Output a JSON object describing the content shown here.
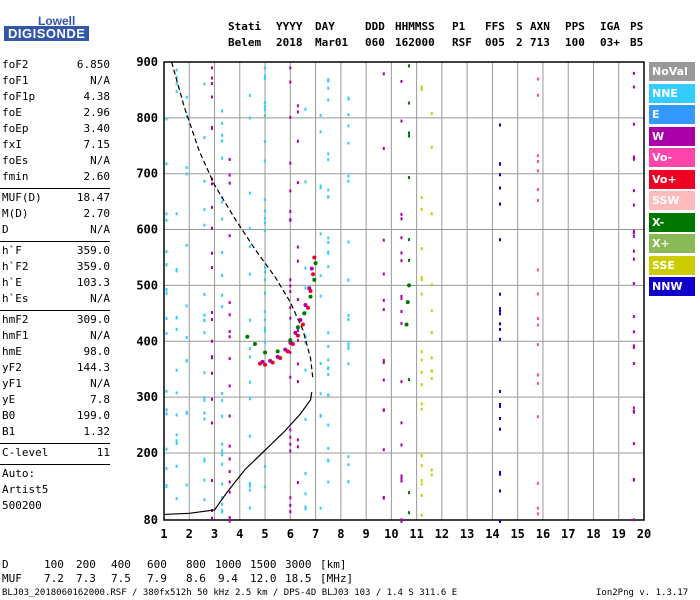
{
  "logo": {
    "top": "Lowell",
    "bottom": "DIGISONDE"
  },
  "header": {
    "line1": [
      "Stati",
      "YYYY",
      "DAY",
      "DDD",
      "HHMMSS",
      "P1",
      "FFS",
      "S",
      "AXN",
      "PPS",
      "IGA",
      "PS"
    ],
    "line2": [
      "Belem",
      "2018",
      "Mar01",
      "060",
      "162000",
      "RSF",
      "005",
      "2",
      "713",
      "100",
      "03+",
      "B5"
    ]
  },
  "params_group1": [
    {
      "label": "foF2",
      "value": "6.850"
    },
    {
      "label": "foF1",
      "value": "N/A"
    },
    {
      "label": "foF1p",
      "value": "4.38"
    },
    {
      "label": "foE",
      "value": "2.96"
    },
    {
      "label": "foEp",
      "value": "3.40"
    },
    {
      "label": "fxI",
      "value": "7.15"
    },
    {
      "label": "foEs",
      "value": "N/A"
    },
    {
      "label": "fmin",
      "value": "2.60"
    }
  ],
  "params_group2": [
    {
      "label": "MUF(D)",
      "value": "18.47"
    },
    {
      "label": "M(D)",
      "value": "2.70"
    },
    {
      "label": "D",
      "value": "N/A"
    }
  ],
  "params_group3": [
    {
      "label": "h`F",
      "value": "359.0"
    },
    {
      "label": "h`F2",
      "value": "359.0"
    },
    {
      "label": "h`E",
      "value": "103.3"
    },
    {
      "label": "h`Es",
      "value": "N/A"
    }
  ],
  "params_group4": [
    {
      "label": "hmF2",
      "value": "309.0"
    },
    {
      "label": "hmF1",
      "value": "N/A"
    },
    {
      "label": "hmE",
      "value": "98.0"
    },
    {
      "label": "yF2",
      "value": "144.3"
    },
    {
      "label": "yF1",
      "value": "N/A"
    },
    {
      "label": "yE",
      "value": "7.8"
    },
    {
      "label": "B0",
      "value": "199.0"
    },
    {
      "label": "B1",
      "value": "1.32"
    }
  ],
  "params_group5": [
    {
      "label": "C-level",
      "value": "11"
    }
  ],
  "auto_lines": [
    "Auto:",
    "Artist5",
    "500200"
  ],
  "legend": [
    {
      "label": "NoVal",
      "bg": "#999999",
      "fg": "#ffffff"
    },
    {
      "label": "NNE",
      "bg": "#33ccff",
      "fg": "#ffffff"
    },
    {
      "label": "E",
      "bg": "#3399ff",
      "fg": "#ffffff"
    },
    {
      "label": "W",
      "bg": "#aa00aa",
      "fg": "#ffffff"
    },
    {
      "label": "Vo-",
      "bg": "#ff44aa",
      "fg": "#ffffff"
    },
    {
      "label": "Vo+",
      "bg": "#ee0022",
      "fg": "#ffffff"
    },
    {
      "label": "SSW",
      "bg": "#ffbbbb",
      "fg": "#ffffff"
    },
    {
      "label": "X-",
      "bg": "#007700",
      "fg": "#ffffff"
    },
    {
      "label": "X+",
      "bg": "#88bb55",
      "fg": "#ffffff"
    },
    {
      "label": "SSE",
      "bg": "#cccc00",
      "fg": "#ffffff"
    },
    {
      "label": "NNW",
      "bg": "#1100cc",
      "fg": "#ffffff"
    }
  ],
  "footer": {
    "d_label": "D",
    "d_values": [
      "100",
      "200",
      "400",
      "600",
      "800",
      "1000",
      "1500",
      "3000"
    ],
    "d_unit": "[km]",
    "muf_label": "MUF",
    "muf_values": [
      "7.2",
      "7.3",
      "7.5",
      "7.9",
      "8.6",
      "9.4",
      "12.0",
      "18.5"
    ],
    "muf_unit": "[MHz]",
    "file_info": "BLJ03_2018060162000.RSF / 380fx512h 50 kHz 2.5 km / DPS-4D BLJ03 103 / 1.4 S 311.6 E",
    "version": "Ion2Png v. 1.3.17"
  },
  "chart_data": {
    "type": "scatter",
    "xlim": [
      1,
      20
    ],
    "ylim": [
      80,
      900
    ],
    "x_ticks": [
      1,
      2,
      3,
      4,
      5,
      6,
      7,
      8,
      9,
      10,
      11,
      12,
      13,
      14,
      15,
      16,
      17,
      18,
      19,
      20
    ],
    "y_ticks": [
      80,
      200,
      300,
      400,
      500,
      600,
      700,
      800,
      900
    ],
    "y_gridlines": [
      200,
      300,
      400,
      500,
      600,
      700,
      800
    ],
    "grid": true,
    "legend_placement": "right",
    "series": [
      {
        "name": "Vo+",
        "color": "#ee0022",
        "points": [
          [
            4.8,
            360
          ],
          [
            5.0,
            358
          ],
          [
            5.3,
            362
          ],
          [
            5.6,
            370
          ],
          [
            5.9,
            382
          ],
          [
            6.1,
            395
          ],
          [
            6.3,
            410
          ],
          [
            6.5,
            430
          ],
          [
            6.7,
            460
          ],
          [
            6.8,
            490
          ],
          [
            6.9,
            520
          ],
          [
            6.95,
            550
          ]
        ]
      },
      {
        "name": "W",
        "color": "#aa00aa",
        "points": [
          [
            4.9,
            363
          ],
          [
            5.2,
            365
          ],
          [
            5.5,
            372
          ],
          [
            5.8,
            385
          ],
          [
            6.0,
            398
          ],
          [
            6.2,
            415
          ],
          [
            6.4,
            438
          ],
          [
            6.6,
            465
          ],
          [
            6.75,
            495
          ],
          [
            6.85,
            530
          ]
        ]
      },
      {
        "name": "X-",
        "color": "#007700",
        "points": [
          [
            4.3,
            408
          ],
          [
            4.6,
            395
          ],
          [
            5.0,
            380
          ],
          [
            5.5,
            382
          ],
          [
            6.0,
            402
          ],
          [
            6.3,
            425
          ],
          [
            6.55,
            450
          ],
          [
            6.8,
            480
          ],
          [
            6.95,
            510
          ],
          [
            7.0,
            540
          ],
          [
            10.6,
            430
          ],
          [
            10.65,
            470
          ],
          [
            10.7,
            500
          ]
        ]
      }
    ],
    "profile_line": {
      "color": "#000000",
      "style": "solid",
      "points": [
        [
          1,
          90
        ],
        [
          2.0,
          92
        ],
        [
          3.0,
          98
        ],
        [
          3.5,
          130
        ],
        [
          4.2,
          170
        ],
        [
          5.0,
          205
        ],
        [
          5.8,
          240
        ],
        [
          6.4,
          270
        ],
        [
          6.8,
          295
        ],
        [
          6.85,
          309
        ]
      ]
    },
    "profile_dashed": {
      "color": "#000000",
      "style": "dashed",
      "points": [
        [
          1.3,
          900
        ],
        [
          1.8,
          820
        ],
        [
          2.4,
          740
        ],
        [
          3.0,
          680
        ],
        [
          3.8,
          620
        ],
        [
          4.6,
          565
        ],
        [
          5.4,
          515
        ],
        [
          6.0,
          470
        ],
        [
          6.5,
          420
        ],
        [
          6.8,
          370
        ],
        [
          6.9,
          330
        ]
      ]
    },
    "noise_columns": [
      {
        "x": 1.1,
        "color": "#33ccff"
      },
      {
        "x": 1.5,
        "color": "#33ccff"
      },
      {
        "x": 1.9,
        "color": "#33ccff"
      },
      {
        "x": 2.6,
        "color": "#33ccff"
      },
      {
        "x": 2.9,
        "color": "#aa00aa"
      },
      {
        "x": 3.3,
        "color": "#33ccff"
      },
      {
        "x": 3.6,
        "color": "#aa00aa"
      },
      {
        "x": 4.4,
        "color": "#33ccff"
      },
      {
        "x": 5.0,
        "color": "#33ccff"
      },
      {
        "x": 6.0,
        "color": "#aa00aa"
      },
      {
        "x": 6.3,
        "color": "#aa00aa"
      },
      {
        "x": 6.6,
        "color": "#33ccff"
      },
      {
        "x": 7.2,
        "color": "#33ccff"
      },
      {
        "x": 7.5,
        "color": "#33ccff"
      },
      {
        "x": 8.3,
        "color": "#33ccff"
      },
      {
        "x": 9.7,
        "color": "#aa00aa"
      },
      {
        "x": 10.4,
        "color": "#aa00aa"
      },
      {
        "x": 10.7,
        "color": "#007700"
      },
      {
        "x": 11.2,
        "color": "#cccc00"
      },
      {
        "x": 11.6,
        "color": "#cccc00"
      },
      {
        "x": 14.3,
        "color": "#1100cc"
      },
      {
        "x": 15.8,
        "color": "#ff44aa"
      },
      {
        "x": 19.6,
        "color": "#aa00aa"
      }
    ]
  }
}
